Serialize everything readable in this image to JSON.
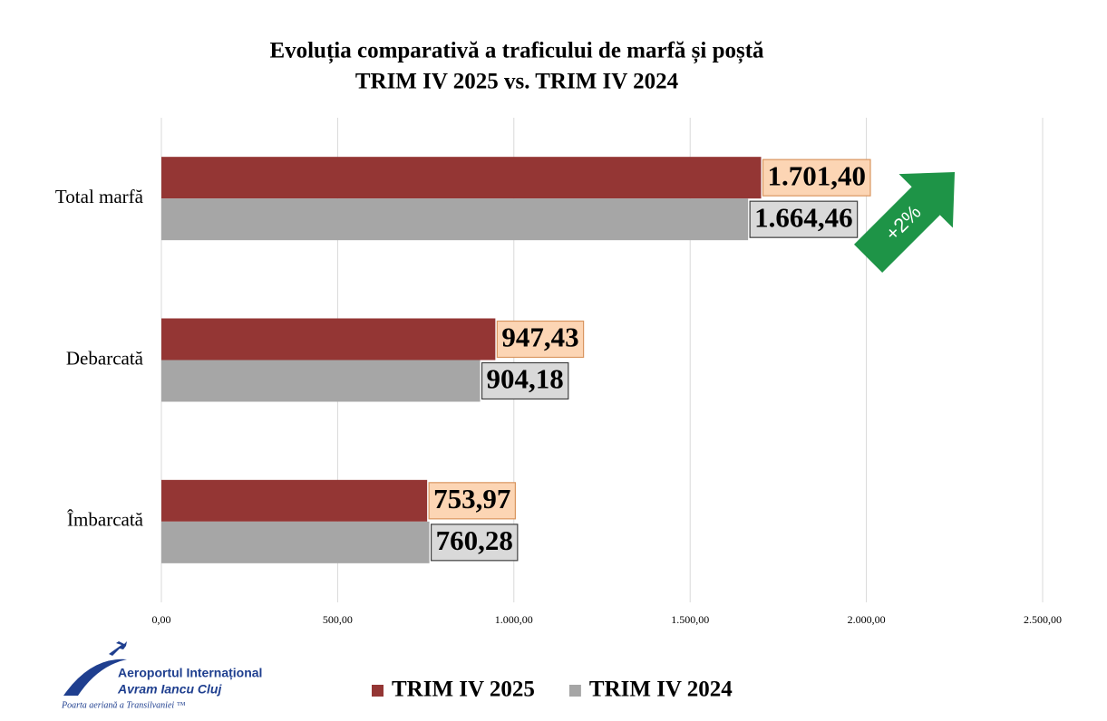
{
  "chart_data": {
    "type": "bar",
    "orientation": "horizontal",
    "title": "Evoluția comparativă a traficului de marfă și poștă",
    "subtitle": "TRIM IV 2025 vs. TRIM IV 2024",
    "categories": [
      "Total marfă",
      "Debarcată",
      "Îmbarcată"
    ],
    "series": [
      {
        "name": "TRIM IV 2025",
        "color": "#943634",
        "values": [
          1701.4,
          947.43,
          753.97
        ],
        "value_labels": [
          "1.701,40",
          "947,43",
          "753,97"
        ],
        "label_fill": "#fcd5b4",
        "label_border": "#d99660"
      },
      {
        "name": "TRIM IV 2024",
        "color": "#a6a6a6",
        "values": [
          1664.46,
          904.18,
          760.28
        ],
        "value_labels": [
          "1.664,46",
          "904,18",
          "760,28"
        ],
        "label_fill": "#d9d9d9",
        "label_border": "#404040"
      }
    ],
    "xlim": [
      0,
      2500
    ],
    "xticks": [
      {
        "value": 0,
        "label": "0,00"
      },
      {
        "value": 500,
        "label": "500,00"
      },
      {
        "value": 1000,
        "label": "1.000,00"
      },
      {
        "value": 1500,
        "label": "1.500,00"
      },
      {
        "value": 2000,
        "label": "2.000,00"
      },
      {
        "value": 2500,
        "label": "2.500,00"
      }
    ],
    "grid": true,
    "legend": "bottom",
    "annotation": "+2%",
    "annotation_color": "#1e9447"
  },
  "logo": {
    "line1": "Aeroportul Internațional",
    "line2": "Avram Iancu Cluj",
    "tagline": "Poarta aeriană a Transilvaniei ™"
  }
}
